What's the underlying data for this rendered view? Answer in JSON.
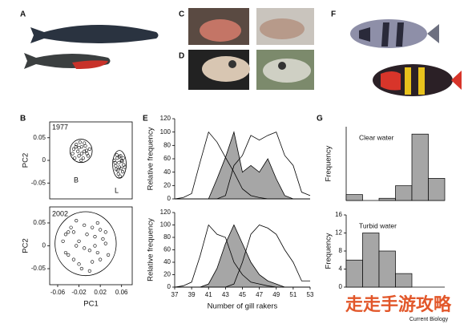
{
  "panel_labels": [
    "A",
    "B",
    "C",
    "D",
    "E",
    "F",
    "G"
  ],
  "chart_data": [
    {
      "type": "scatter",
      "annotations": [
        "1977",
        "B",
        "L"
      ],
      "ylabel": "PC2",
      "xlim": [
        -0.075,
        0.08
      ],
      "ylim": [
        -0.085,
        0.085
      ],
      "yticks": [
        0.05,
        0,
        -0.05
      ],
      "series": [
        {
          "color": "#000000",
          "x": [
            -0.03,
            -0.025,
            -0.02,
            -0.015,
            -0.01,
            -0.005,
            0.0,
            -0.028,
            -0.018,
            -0.012,
            -0.008,
            -0.022,
            -0.015,
            -0.003,
            -0.032,
            -0.02,
            -0.01,
            -0.016,
            -0.026,
            -0.006
          ],
          "y": [
            0.025,
            0.035,
            0.01,
            0.03,
            0.02,
            0.015,
            0.025,
            0.005,
            0.04,
            0.005,
            0.032,
            0.02,
            0.015,
            0.01,
            0.015,
            0.028,
            0.038,
            0.0,
            0.03,
            0.022
          ]
        },
        {
          "color": "#000000",
          "x": [
            0.048,
            0.052,
            0.056,
            0.06,
            0.064,
            0.05,
            0.054,
            0.058,
            0.062,
            0.046,
            0.055,
            0.059,
            0.051,
            0.063,
            0.057,
            0.049,
            0.061,
            0.053,
            0.066,
            0.056
          ],
          "y": [
            -0.005,
            0.005,
            -0.015,
            0.0,
            -0.01,
            -0.02,
            -0.03,
            0.01,
            -0.025,
            0.0,
            -0.005,
            -0.018,
            0.012,
            0.005,
            -0.035,
            -0.012,
            -0.002,
            -0.022,
            -0.015,
            0.008
          ]
        }
      ]
    },
    {
      "type": "scatter",
      "annotations": [
        "2002"
      ],
      "ylabel": "PC2",
      "xlabel": "PC1",
      "xlim": [
        -0.075,
        0.08
      ],
      "ylim": [
        -0.085,
        0.085
      ],
      "yticks": [
        0.05,
        0,
        -0.05
      ],
      "xticks": [
        -0.06,
        -0.02,
        0.02,
        0.06
      ],
      "series": [
        {
          "color": "#000000",
          "x": [
            -0.05,
            -0.04,
            -0.03,
            -0.02,
            -0.01,
            0.0,
            0.01,
            0.02,
            0.03,
            -0.045,
            -0.035,
            -0.025,
            -0.015,
            -0.005,
            0.005,
            0.015,
            0.025,
            0.035,
            -0.04,
            -0.02,
            0.0,
            0.02,
            -0.03,
            -0.01,
            0.01,
            -0.025,
            0.005,
            0.03,
            -0.045,
            0.015
          ],
          "y": [
            0.01,
            -0.02,
            0.03,
            -0.04,
            0.045,
            -0.01,
            0.02,
            -0.03,
            0.005,
            -0.015,
            0.04,
            0.0,
            -0.05,
            0.025,
            -0.035,
            0.05,
            0.015,
            -0.02,
            0.03,
            0.01,
            -0.055,
            0.035,
            -0.03,
            -0.005,
            0.0,
            0.055,
            0.04,
            0.03,
            0.025,
            -0.015
          ]
        }
      ]
    },
    {
      "type": "line",
      "ylabel": "Relative frequency",
      "x": [
        37,
        38,
        39,
        40,
        41,
        42,
        43,
        44,
        45,
        46,
        47,
        48,
        49,
        50,
        51,
        52,
        53
      ],
      "xlim": [
        37,
        53
      ],
      "ylim": [
        0,
        120
      ],
      "yticks": [
        0,
        20,
        40,
        60,
        80,
        100,
        120
      ],
      "series": [
        {
          "type": "area",
          "color": "#a6a6a6",
          "values": [
            0,
            0,
            0,
            0,
            0,
            30,
            62,
            100,
            40,
            50,
            40,
            60,
            30,
            5,
            0,
            0,
            0
          ]
        },
        {
          "type": "line",
          "color": "#000000",
          "values": [
            0,
            2,
            8,
            55,
            100,
            85,
            62,
            40,
            15,
            5,
            2,
            0,
            0,
            0,
            0,
            0,
            0
          ]
        },
        {
          "type": "line",
          "color": "#000000",
          "values": [
            0,
            0,
            0,
            0,
            0,
            0,
            5,
            50,
            65,
            95,
            88,
            95,
            100,
            65,
            50,
            10,
            5
          ]
        }
      ]
    },
    {
      "type": "line",
      "ylabel": "Relative frequency",
      "xlabel": "Number of gill rakers",
      "x": [
        37,
        38,
        39,
        40,
        41,
        42,
        43,
        44,
        45,
        46,
        47,
        48,
        49,
        50,
        51,
        52,
        53
      ],
      "xlim": [
        37,
        53
      ],
      "ylim": [
        0,
        120
      ],
      "yticks": [
        0,
        20,
        40,
        60,
        80,
        100,
        120
      ],
      "xticks": [
        37,
        39,
        41,
        43,
        45,
        47,
        49,
        51,
        53
      ],
      "series": [
        {
          "type": "area",
          "color": "#a6a6a6",
          "values": [
            0,
            0,
            0,
            0,
            5,
            30,
            70,
            100,
            70,
            40,
            20,
            10,
            5,
            0,
            0,
            0,
            0
          ]
        },
        {
          "type": "line",
          "color": "#000000",
          "values": [
            0,
            2,
            8,
            50,
            100,
            85,
            80,
            40,
            20,
            8,
            5,
            2,
            0,
            0,
            0,
            0,
            0
          ]
        },
        {
          "type": "line",
          "color": "#000000",
          "values": [
            0,
            0,
            0,
            0,
            0,
            0,
            0,
            5,
            40,
            85,
            100,
            95,
            85,
            60,
            40,
            10,
            10
          ]
        }
      ]
    },
    {
      "type": "bar",
      "annotation": "Clear water",
      "ylabel": "Frequency",
      "ylim": [
        0,
        500
      ],
      "values": [
        40,
        0,
        15,
        100,
        450,
        150
      ],
      "color": "#a6a6a6"
    },
    {
      "type": "bar",
      "annotation": "Turbid water",
      "ylabel": "Frequency",
      "ylim": [
        0,
        16
      ],
      "yticks": [
        0,
        4,
        8,
        12,
        16
      ],
      "values": [
        6,
        12,
        8,
        3,
        0,
        0
      ],
      "color": "#a6a6a6"
    }
  ],
  "watermark": "走走手游攻略",
  "credit": "Current Biology"
}
